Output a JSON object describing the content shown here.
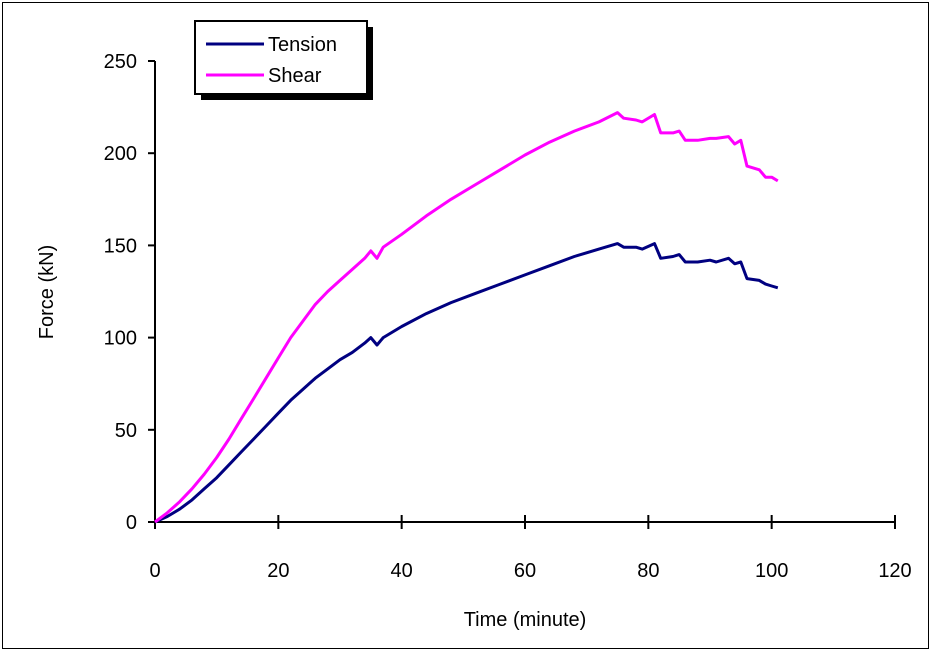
{
  "chart_data": {
    "type": "line",
    "xlabel": "Time (minute)",
    "ylabel": "Force (kN)",
    "xlim": [
      0,
      120
    ],
    "ylim": [
      0,
      250
    ],
    "xticks": [
      "0",
      "20",
      "40",
      "60",
      "80",
      "100",
      "120"
    ],
    "yticks": [
      "0",
      "50",
      "100",
      "150",
      "200",
      "250"
    ],
    "grid": false,
    "legend_position": "top-left",
    "series": [
      {
        "name": "Tension",
        "color": "#000080",
        "points": [
          [
            0,
            0
          ],
          [
            2,
            3
          ],
          [
            4,
            7
          ],
          [
            6,
            12
          ],
          [
            8,
            18
          ],
          [
            10,
            24
          ],
          [
            12,
            31
          ],
          [
            14,
            38
          ],
          [
            16,
            45
          ],
          [
            18,
            52
          ],
          [
            20,
            59
          ],
          [
            22,
            66
          ],
          [
            24,
            72
          ],
          [
            26,
            78
          ],
          [
            28,
            83
          ],
          [
            30,
            88
          ],
          [
            32,
            92
          ],
          [
            34,
            97
          ],
          [
            35,
            100
          ],
          [
            36,
            96
          ],
          [
            37,
            100
          ],
          [
            40,
            106
          ],
          [
            44,
            113
          ],
          [
            48,
            119
          ],
          [
            52,
            124
          ],
          [
            56,
            129
          ],
          [
            60,
            134
          ],
          [
            64,
            139
          ],
          [
            68,
            144
          ],
          [
            72,
            148
          ],
          [
            75,
            151
          ],
          [
            76,
            149
          ],
          [
            78,
            149
          ],
          [
            79,
            148
          ],
          [
            81,
            151
          ],
          [
            82,
            143
          ],
          [
            84,
            144
          ],
          [
            85,
            145
          ],
          [
            86,
            141
          ],
          [
            88,
            141
          ],
          [
            90,
            142
          ],
          [
            91,
            141
          ],
          [
            93,
            143
          ],
          [
            94,
            140
          ],
          [
            95,
            141
          ],
          [
            96,
            132
          ],
          [
            98,
            131
          ],
          [
            99,
            129
          ],
          [
            100,
            128
          ],
          [
            101,
            127
          ]
        ]
      },
      {
        "name": "Shear",
        "color": "#ff00ff",
        "points": [
          [
            0,
            0
          ],
          [
            2,
            5
          ],
          [
            4,
            11
          ],
          [
            6,
            18
          ],
          [
            8,
            26
          ],
          [
            10,
            35
          ],
          [
            12,
            45
          ],
          [
            14,
            56
          ],
          [
            16,
            67
          ],
          [
            18,
            78
          ],
          [
            20,
            89
          ],
          [
            22,
            100
          ],
          [
            24,
            109
          ],
          [
            26,
            118
          ],
          [
            28,
            125
          ],
          [
            30,
            131
          ],
          [
            32,
            137
          ],
          [
            34,
            143
          ],
          [
            35,
            147
          ],
          [
            36,
            143
          ],
          [
            37,
            149
          ],
          [
            40,
            156
          ],
          [
            44,
            166
          ],
          [
            48,
            175
          ],
          [
            52,
            183
          ],
          [
            56,
            191
          ],
          [
            60,
            199
          ],
          [
            64,
            206
          ],
          [
            68,
            212
          ],
          [
            72,
            217
          ],
          [
            75,
            222
          ],
          [
            76,
            219
          ],
          [
            78,
            218
          ],
          [
            79,
            217
          ],
          [
            81,
            221
          ],
          [
            82,
            211
          ],
          [
            84,
            211
          ],
          [
            85,
            212
          ],
          [
            86,
            207
          ],
          [
            88,
            207
          ],
          [
            90,
            208
          ],
          [
            91,
            208
          ],
          [
            93,
            209
          ],
          [
            94,
            205
          ],
          [
            95,
            207
          ],
          [
            96,
            193
          ],
          [
            98,
            191
          ],
          [
            99,
            187
          ],
          [
            100,
            187
          ],
          [
            101,
            185
          ]
        ]
      }
    ]
  }
}
